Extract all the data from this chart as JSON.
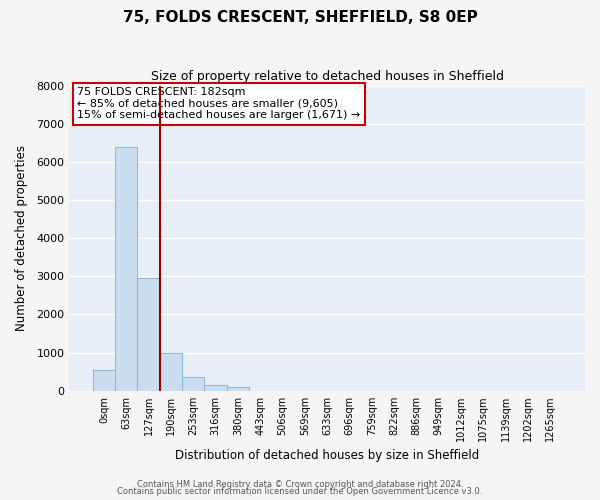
{
  "title": "75, FOLDS CRESCENT, SHEFFIELD, S8 0EP",
  "subtitle": "Size of property relative to detached houses in Sheffield",
  "xlabel": "Distribution of detached houses by size in Sheffield",
  "ylabel": "Number of detached properties",
  "bar_labels": [
    "0sqm",
    "63sqm",
    "127sqm",
    "190sqm",
    "253sqm",
    "316sqm",
    "380sqm",
    "443sqm",
    "506sqm",
    "569sqm",
    "633sqm",
    "696sqm",
    "759sqm",
    "822sqm",
    "886sqm",
    "949sqm",
    "1012sqm",
    "1075sqm",
    "1139sqm",
    "1202sqm",
    "1265sqm"
  ],
  "bar_values": [
    550,
    6400,
    2950,
    980,
    370,
    165,
    90,
    0,
    0,
    0,
    0,
    0,
    0,
    0,
    0,
    0,
    0,
    0,
    0,
    0,
    0
  ],
  "bar_color": "#ccddf0",
  "bar_edge_color": "#8ab4d8",
  "vline_color": "#990000",
  "ylim": [
    0,
    8000
  ],
  "yticks": [
    0,
    1000,
    2000,
    3000,
    4000,
    5000,
    6000,
    7000,
    8000
  ],
  "annotation_title": "75 FOLDS CRESCENT: 182sqm",
  "annotation_line1": "← 85% of detached houses are smaller (9,605)",
  "annotation_line2": "15% of semi-detached houses are larger (1,671) →",
  "annotation_box_color": "#cc0000",
  "footer_line1": "Contains HM Land Registry data © Crown copyright and database right 2024.",
  "footer_line2": "Contains public sector information licensed under the Open Government Licence v3.0.",
  "fig_bg_color": "#f5f5f5",
  "plot_bg_color": "#e8eef5"
}
